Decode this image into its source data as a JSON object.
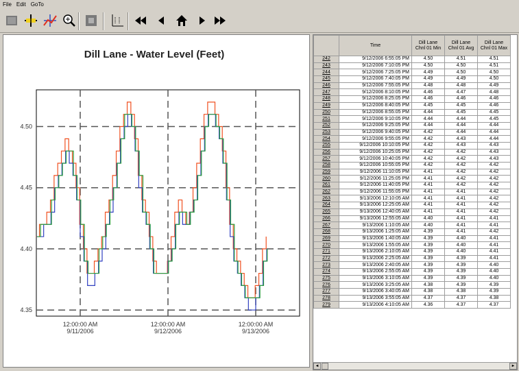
{
  "menu": [
    "File",
    "Edit",
    "GoTo"
  ],
  "toolbar_icons": [
    "chart-icon",
    "crosshair-icon",
    "trend-icon",
    "zoom-icon",
    "stop-icon",
    "axis-icon",
    "rewind-icon",
    "back-icon",
    "home-icon",
    "forward-icon",
    "fast-forward-icon"
  ],
  "chart_data": {
    "type": "line",
    "title": "Dill Lane - Water Level (Feet)",
    "ylim": [
      4.345,
      4.53
    ],
    "yticks": [
      "4.50",
      "4.45",
      "4.40",
      "4.35"
    ],
    "ytick_values": [
      4.5,
      4.45,
      4.4,
      4.35
    ],
    "xticks": [
      {
        "time": "12:00:00 AM",
        "date": "9/11/2006"
      },
      {
        "time": "12:00:00 AM",
        "date": "9/12/2006"
      },
      {
        "time": "12:00:00 AM",
        "date": "9/13/2006"
      }
    ],
    "xtick_positions_hours": [
      12,
      36,
      60
    ],
    "xlim_hours": [
      0,
      72
    ],
    "grid": "dashed",
    "series": [
      {
        "color": "#f05020",
        "values": [
          [
            0,
            4.41
          ],
          [
            1,
            4.42
          ],
          [
            2,
            4.42
          ],
          [
            3,
            4.43
          ],
          [
            4,
            4.44
          ],
          [
            5,
            4.46
          ],
          [
            6,
            4.47
          ],
          [
            7,
            4.48
          ],
          [
            8,
            4.49
          ],
          [
            9,
            4.48
          ],
          [
            10,
            4.47
          ],
          [
            11,
            4.45
          ],
          [
            12,
            4.42
          ],
          [
            13,
            4.4
          ],
          [
            14,
            4.38
          ],
          [
            15,
            4.38
          ],
          [
            16,
            4.39
          ],
          [
            17,
            4.4
          ],
          [
            18,
            4.41
          ],
          [
            19,
            4.43
          ],
          [
            20,
            4.44
          ],
          [
            21,
            4.46
          ],
          [
            22,
            4.48
          ],
          [
            23,
            4.5
          ],
          [
            24,
            4.51
          ],
          [
            25,
            4.52
          ],
          [
            26,
            4.51
          ],
          [
            27,
            4.49
          ],
          [
            28,
            4.46
          ],
          [
            29,
            4.44
          ],
          [
            30,
            4.43
          ],
          [
            31,
            4.41
          ],
          [
            32,
            4.39
          ],
          [
            33,
            4.38
          ],
          [
            34,
            4.38
          ],
          [
            35,
            4.38
          ],
          [
            36,
            4.39
          ],
          [
            37,
            4.41
          ],
          [
            38,
            4.43
          ],
          [
            39,
            4.44
          ],
          [
            40,
            4.43
          ],
          [
            41,
            4.42
          ],
          [
            42,
            4.43
          ],
          [
            43,
            4.45
          ],
          [
            44,
            4.47
          ],
          [
            45,
            4.49
          ],
          [
            46,
            4.51
          ],
          [
            47,
            4.52
          ],
          [
            48,
            4.52
          ],
          [
            49,
            4.51
          ],
          [
            50,
            4.5
          ],
          [
            51,
            4.48
          ],
          [
            52,
            4.45
          ],
          [
            53,
            4.42
          ],
          [
            54,
            4.4
          ],
          [
            55,
            4.39
          ],
          [
            56,
            4.38
          ],
          [
            57,
            4.37
          ],
          [
            58,
            4.36
          ],
          [
            59,
            4.36
          ],
          [
            60,
            4.37
          ],
          [
            61,
            4.38
          ],
          [
            62,
            4.4
          ],
          [
            63,
            4.41
          ]
        ]
      },
      {
        "color": "#3040c0",
        "values": [
          [
            0,
            4.41
          ],
          [
            1,
            4.41
          ],
          [
            2,
            4.42
          ],
          [
            3,
            4.42
          ],
          [
            4,
            4.43
          ],
          [
            5,
            4.45
          ],
          [
            6,
            4.46
          ],
          [
            7,
            4.47
          ],
          [
            8,
            4.48
          ],
          [
            9,
            4.47
          ],
          [
            10,
            4.46
          ],
          [
            11,
            4.44
          ],
          [
            12,
            4.41
          ],
          [
            13,
            4.39
          ],
          [
            14,
            4.37
          ],
          [
            15,
            4.37
          ],
          [
            16,
            4.38
          ],
          [
            17,
            4.39
          ],
          [
            18,
            4.4
          ],
          [
            19,
            4.42
          ],
          [
            20,
            4.43
          ],
          [
            21,
            4.45
          ],
          [
            22,
            4.47
          ],
          [
            23,
            4.49
          ],
          [
            24,
            4.5
          ],
          [
            25,
            4.51
          ],
          [
            26,
            4.5
          ],
          [
            27,
            4.48
          ],
          [
            28,
            4.45
          ],
          [
            29,
            4.43
          ],
          [
            30,
            4.42
          ],
          [
            31,
            4.4
          ],
          [
            32,
            4.38
          ],
          [
            33,
            4.38
          ],
          [
            34,
            4.38
          ],
          [
            35,
            4.38
          ],
          [
            36,
            4.39
          ],
          [
            37,
            4.4
          ],
          [
            38,
            4.42
          ],
          [
            39,
            4.43
          ],
          [
            40,
            4.42
          ],
          [
            41,
            4.42
          ],
          [
            42,
            4.43
          ],
          [
            43,
            4.44
          ],
          [
            44,
            4.46
          ],
          [
            45,
            4.48
          ],
          [
            46,
            4.5
          ],
          [
            47,
            4.51
          ],
          [
            48,
            4.51
          ],
          [
            49,
            4.5
          ],
          [
            50,
            4.49
          ],
          [
            51,
            4.47
          ],
          [
            52,
            4.44
          ],
          [
            53,
            4.41
          ],
          [
            54,
            4.39
          ],
          [
            55,
            4.38
          ],
          [
            56,
            4.37
          ],
          [
            57,
            4.36
          ],
          [
            58,
            4.35
          ],
          [
            59,
            4.35
          ],
          [
            60,
            4.36
          ],
          [
            61,
            4.37
          ],
          [
            62,
            4.39
          ],
          [
            63,
            4.4
          ]
        ]
      },
      {
        "color": "#30a040",
        "values": [
          [
            0,
            4.41
          ],
          [
            1,
            4.42
          ],
          [
            2,
            4.42
          ],
          [
            3,
            4.42
          ],
          [
            4,
            4.44
          ],
          [
            5,
            4.45
          ],
          [
            6,
            4.46
          ],
          [
            7,
            4.47
          ],
          [
            8,
            4.48
          ],
          [
            9,
            4.48
          ],
          [
            10,
            4.46
          ],
          [
            11,
            4.44
          ],
          [
            12,
            4.42
          ],
          [
            13,
            4.39
          ],
          [
            14,
            4.38
          ],
          [
            15,
            4.38
          ],
          [
            16,
            4.38
          ],
          [
            17,
            4.4
          ],
          [
            18,
            4.41
          ],
          [
            19,
            4.42
          ],
          [
            20,
            4.44
          ],
          [
            21,
            4.45
          ],
          [
            22,
            4.47
          ],
          [
            23,
            4.49
          ],
          [
            24,
            4.51
          ],
          [
            25,
            4.51
          ],
          [
            26,
            4.5
          ],
          [
            27,
            4.48
          ],
          [
            28,
            4.46
          ],
          [
            29,
            4.43
          ],
          [
            30,
            4.42
          ],
          [
            31,
            4.4
          ],
          [
            32,
            4.38
          ],
          [
            33,
            4.38
          ],
          [
            34,
            4.38
          ],
          [
            35,
            4.38
          ],
          [
            36,
            4.39
          ],
          [
            37,
            4.4
          ],
          [
            38,
            4.42
          ],
          [
            39,
            4.43
          ],
          [
            40,
            4.43
          ],
          [
            41,
            4.42
          ],
          [
            42,
            4.43
          ],
          [
            43,
            4.44
          ],
          [
            44,
            4.46
          ],
          [
            45,
            4.48
          ],
          [
            46,
            4.5
          ],
          [
            47,
            4.51
          ],
          [
            48,
            4.51
          ],
          [
            49,
            4.5
          ],
          [
            50,
            4.49
          ],
          [
            51,
            4.47
          ],
          [
            52,
            4.44
          ],
          [
            53,
            4.42
          ],
          [
            54,
            4.39
          ],
          [
            55,
            4.38
          ],
          [
            56,
            4.37
          ],
          [
            57,
            4.36
          ],
          [
            58,
            4.36
          ],
          [
            59,
            4.36
          ],
          [
            60,
            4.36
          ],
          [
            61,
            4.37
          ],
          [
            62,
            4.39
          ],
          [
            63,
            4.4
          ]
        ]
      }
    ]
  },
  "grid": {
    "headers": [
      "Time",
      "Dill Lane\nChnl 01 Min",
      "Dill Lane\nChnl 01 Avg",
      "Dill Lane\nChnl 01 Max"
    ],
    "rows": [
      [
        "242",
        "9/12/2006 6:55:05 PM",
        "4.50",
        "4.51",
        "4.51"
      ],
      [
        "243",
        "9/12/2006 7:10:05 PM",
        "4.50",
        "4.50",
        "4.51"
      ],
      [
        "244",
        "9/12/2006 7:25:05 PM",
        "4.49",
        "4.50",
        "4.50"
      ],
      [
        "245",
        "9/12/2006 7:40:05 PM",
        "4.49",
        "4.49",
        "4.50"
      ],
      [
        "246",
        "9/12/2006 7:55:05 PM",
        "4.48",
        "4.48",
        "4.49"
      ],
      [
        "247",
        "9/12/2006 8:10:05 PM",
        "4.46",
        "4.47",
        "4.48"
      ],
      [
        "248",
        "9/12/2006 8:25:05 PM",
        "4.46",
        "4.46",
        "4.46"
      ],
      [
        "249",
        "9/12/2006 8:40:05 PM",
        "4.45",
        "4.45",
        "4.46"
      ],
      [
        "250",
        "9/12/2006 8:55:05 PM",
        "4.44",
        "4.45",
        "4.45"
      ],
      [
        "251",
        "9/12/2006 9:10:05 PM",
        "4.44",
        "4.44",
        "4.45"
      ],
      [
        "252",
        "9/12/2006 9:25:05 PM",
        "4.44",
        "4.44",
        "4.44"
      ],
      [
        "253",
        "9/12/2006 9:40:05 PM",
        "4.42",
        "4.44",
        "4.44"
      ],
      [
        "254",
        "9/12/2006 9:55:05 PM",
        "4.42",
        "4.43",
        "4.44"
      ],
      [
        "255",
        "9/12/2006 10:10:05 PM",
        "4.42",
        "4.43",
        "4.43"
      ],
      [
        "256",
        "9/12/2006 10:25:05 PM",
        "4.42",
        "4.42",
        "4.43"
      ],
      [
        "257",
        "9/12/2006 10:40:05 PM",
        "4.42",
        "4.42",
        "4.43"
      ],
      [
        "258",
        "9/12/2006 10:55:05 PM",
        "4.42",
        "4.42",
        "4.42"
      ],
      [
        "259",
        "9/12/2006 11:10:05 PM",
        "4.41",
        "4.42",
        "4.42"
      ],
      [
        "260",
        "9/12/2006 11:25:05 PM",
        "4.41",
        "4.42",
        "4.42"
      ],
      [
        "261",
        "9/12/2006 11:40:05 PM",
        "4.41",
        "4.42",
        "4.42"
      ],
      [
        "262",
        "9/12/2006 11:55:05 PM",
        "4.41",
        "4.41",
        "4.42"
      ],
      [
        "263",
        "9/13/2006 12:10:05 AM",
        "4.41",
        "4.41",
        "4.42"
      ],
      [
        "264",
        "9/13/2006 12:25:05 AM",
        "4.41",
        "4.41",
        "4.42"
      ],
      [
        "265",
        "9/13/2006 12:40:05 AM",
        "4.41",
        "4.41",
        "4.42"
      ],
      [
        "266",
        "9/13/2006 12:55:05 AM",
        "4.40",
        "4.41",
        "4.41"
      ],
      [
        "267",
        "9/13/2006 1:10:05 AM",
        "4.40",
        "4.41",
        "4.41"
      ],
      [
        "268",
        "9/13/2006 1:25:05 AM",
        "4.39",
        "4.41",
        "4.42"
      ],
      [
        "269",
        "9/13/2006 1:40:05 AM",
        "4.39",
        "4.40",
        "4.41"
      ],
      [
        "270",
        "9/13/2006 1:55:05 AM",
        "4.39",
        "4.40",
        "4.41"
      ],
      [
        "271",
        "9/13/2006 2:10:05 AM",
        "4.39",
        "4.40",
        "4.41"
      ],
      [
        "272",
        "9/13/2006 2:25:05 AM",
        "4.39",
        "4.39",
        "4.41"
      ],
      [
        "273",
        "9/13/2006 2:40:05 AM",
        "4.39",
        "4.39",
        "4.40"
      ],
      [
        "274",
        "9/13/2006 2:55:05 AM",
        "4.39",
        "4.39",
        "4.40"
      ],
      [
        "275",
        "9/13/2006 3:10:05 AM",
        "4.39",
        "4.39",
        "4.40"
      ],
      [
        "276",
        "9/13/2006 3:25:05 AM",
        "4.38",
        "4.39",
        "4.39"
      ],
      [
        "277",
        "9/13/2006 3:40:05 AM",
        "4.38",
        "4.38",
        "4.39"
      ],
      [
        "278",
        "9/13/2006 3:55:05 AM",
        "4.37",
        "4.37",
        "4.38"
      ],
      [
        "279",
        "9/13/2006 4:10:05 AM",
        "4.36",
        "4.37",
        "4.37"
      ]
    ]
  },
  "scroll": {
    "left": "◄",
    "right": "►"
  }
}
